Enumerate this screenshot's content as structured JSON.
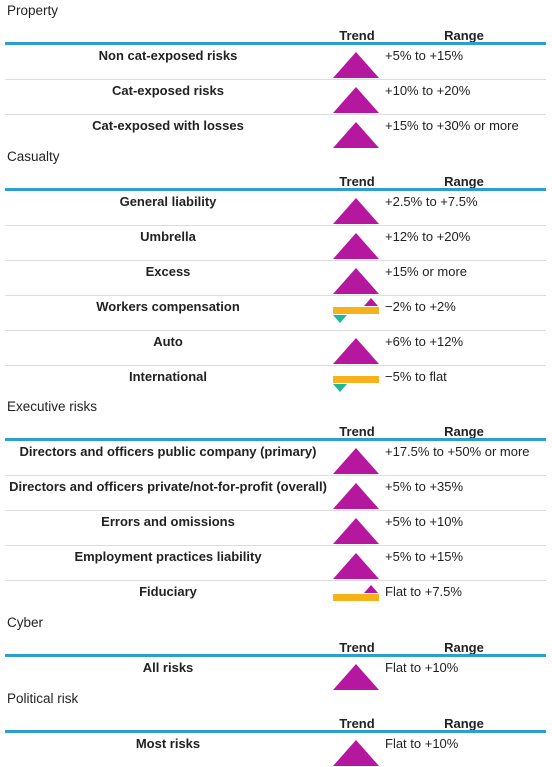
{
  "colors": {
    "rule": "#2a9fd0",
    "up": "#b5179e",
    "flat": "#f5b21b",
    "down": "#1fb89a"
  },
  "sections": [
    {
      "title": "Property",
      "trend_header": "Trend",
      "range_header": "Range",
      "rows": [
        {
          "label": "Non cat-exposed risks",
          "trend": "up",
          "range": "+5% to +15%"
        },
        {
          "label": "Cat-exposed risks",
          "trend": "up",
          "range": "+10% to +20%"
        },
        {
          "label": "Cat-exposed with losses",
          "trend": "up",
          "range": "+15% to +30% or more"
        }
      ]
    },
    {
      "title": "Casualty",
      "trend_header": "Trend",
      "range_header": "Range",
      "rows": [
        {
          "label": "General liability",
          "trend": "up",
          "range": "+2.5% to +7.5%"
        },
        {
          "label": "Umbrella",
          "trend": "up",
          "range": "+12% to +20%"
        },
        {
          "label": "Excess",
          "trend": "up",
          "range": "+15% or more"
        },
        {
          "label": "Workers compensation",
          "trend": "mixed",
          "range": "−2% to +2%"
        },
        {
          "label": "Auto",
          "trend": "up",
          "range": "+6% to +12%"
        },
        {
          "label": "International",
          "trend": "flat-down",
          "range": "−5% to flat"
        }
      ]
    },
    {
      "title": "Executive risks",
      "trend_header": "Trend",
      "range_header": "Range",
      "rows": [
        {
          "label": "Directors and officers public company (primary)",
          "trend": "up",
          "range": "+17.5% to +50% or more"
        },
        {
          "label": "Directors and officers private/not-for-profit (overall)",
          "trend": "up",
          "range": "+5% to +35%"
        },
        {
          "label": "Errors and omissions",
          "trend": "up",
          "range": "+5% to +10%"
        },
        {
          "label": "Employment practices liability",
          "trend": "up",
          "range": "+5% to +15%"
        },
        {
          "label": "Fiduciary",
          "trend": "flat-up",
          "range": "Flat to +7.5%"
        }
      ]
    },
    {
      "title": "Cyber",
      "trend_header": "Trend",
      "range_header": "Range",
      "rows": [
        {
          "label": "All risks",
          "trend": "up",
          "range": "Flat to +10%"
        }
      ]
    },
    {
      "title": "Political risk",
      "trend_header": "Trend",
      "range_header": "Range",
      "rows": [
        {
          "label": "Most risks",
          "trend": "up",
          "range": "Flat to +10%"
        }
      ]
    }
  ]
}
